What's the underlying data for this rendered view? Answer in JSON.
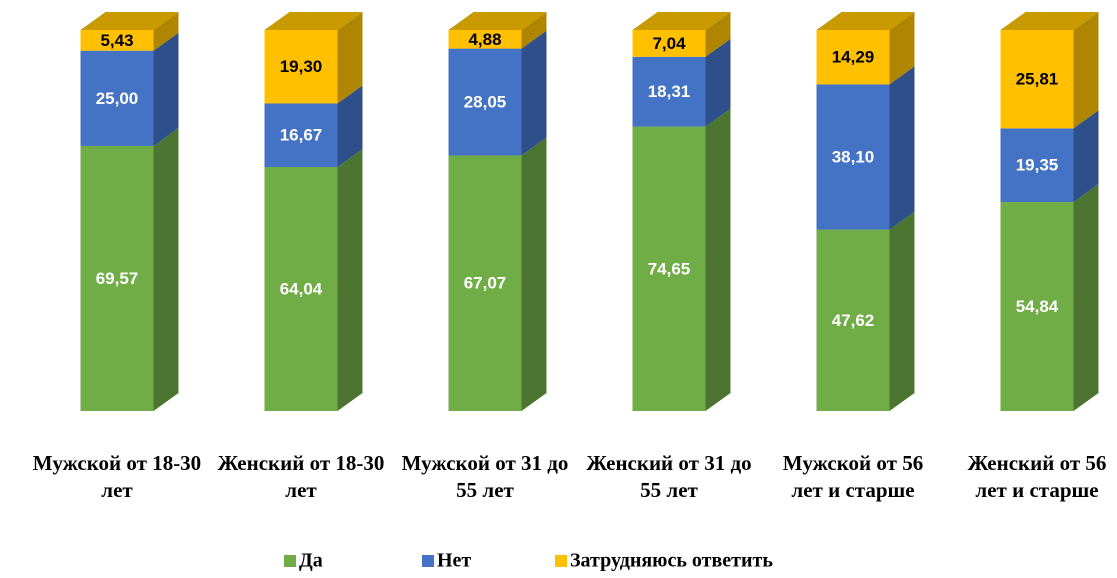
{
  "chart_data": {
    "type": "bar3d_stacked",
    "categories": [
      "Мужской от 18-30 лет",
      "Женский от 18-30 лет",
      "Мужской от 31 до 55 лет",
      "Женский от 31 до 55 лет",
      "Мужской от 56 лет и старше",
      "Женский от 56 лет и старше"
    ],
    "series": [
      {
        "name": "Да",
        "color": "#70ad47",
        "side": "#4b7530",
        "label_color": "#ffffff",
        "values": [
          69.57,
          64.04,
          67.07,
          74.65,
          47.62,
          54.84
        ],
        "value_labels": [
          "69,57",
          "64,04",
          "67,07",
          "74,65",
          "47,62",
          "54,84"
        ]
      },
      {
        "name": "Нет",
        "color": "#4472c4",
        "side": "#2f4f8a",
        "label_color": "#ffffff",
        "values": [
          25.0,
          16.67,
          28.05,
          18.31,
          38.1,
          19.35
        ],
        "value_labels": [
          "25,00",
          "16,67",
          "28,05",
          "18,31",
          "38,10",
          "19,35"
        ]
      },
      {
        "name": "Затрудняюсь ответить",
        "color": "#ffc000",
        "side": "#b08500",
        "top": "#c99a00",
        "label_color": "#000000",
        "values": [
          5.43,
          19.3,
          4.88,
          7.04,
          14.29,
          25.81
        ],
        "value_labels": [
          "5,43",
          "19,30",
          "4,88",
          "7,04",
          "14,29",
          "25,81"
        ]
      }
    ],
    "ylim": [
      0,
      100
    ],
    "legend": "bottom"
  }
}
